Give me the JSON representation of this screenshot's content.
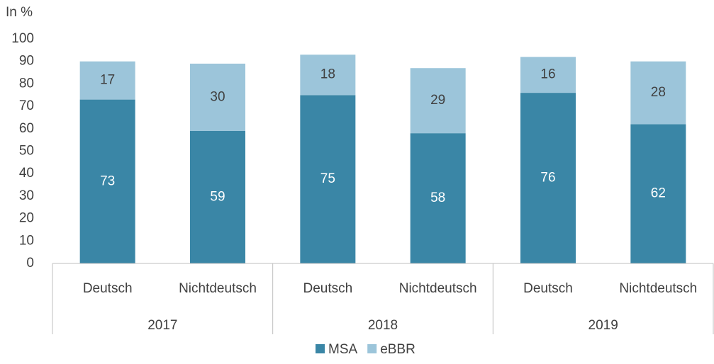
{
  "chart_data": {
    "type": "stacked_bar",
    "y_axis_label": "In %",
    "categories": [
      "Deutsch",
      "Nichtdeutsch",
      "Deutsch",
      "Nichtdeutsch",
      "Deutsch",
      "Nichtdeutsch"
    ],
    "groups": [
      "2017",
      "2018",
      "2019"
    ],
    "series": [
      {
        "name": "MSA",
        "color": "#3a86a6",
        "values": [
          73,
          59,
          75,
          58,
          76,
          62
        ]
      },
      {
        "name": "eBBR",
        "color": "#9cc5da",
        "values": [
          17,
          30,
          18,
          29,
          16,
          28
        ]
      }
    ],
    "ylim": [
      0,
      100
    ],
    "yticks": [
      0,
      10,
      20,
      30,
      40,
      50,
      60,
      70,
      80,
      90,
      100
    ],
    "legend": "bottom"
  }
}
